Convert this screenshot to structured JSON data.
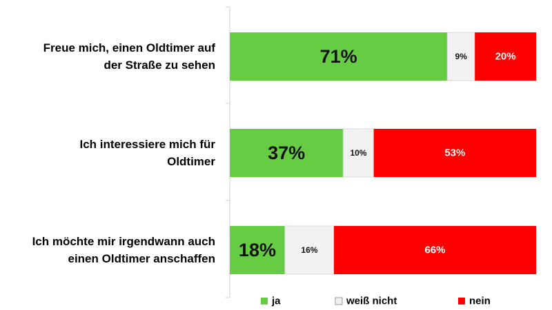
{
  "chart_data": {
    "type": "bar",
    "orientation": "horizontal",
    "stacked": true,
    "title": "",
    "xlabel": "",
    "ylabel": "",
    "xlim": [
      0,
      100
    ],
    "categories": [
      [
        "Freue mich, einen Oldtimer auf",
        "der Straße zu sehen"
      ],
      [
        "Ich interessiere mich für",
        "Oldtimer"
      ],
      [
        "Ich möchte mir irgendwann auch",
        "einen Oldtimer anschaffen"
      ]
    ],
    "series": [
      {
        "name": "ja",
        "color": "#66cc44",
        "values": [
          71,
          37,
          18
        ],
        "labels": [
          "71%",
          "37%",
          "18%"
        ]
      },
      {
        "name": "weiß nicht",
        "color": "#f2f2f2",
        "values": [
          9,
          10,
          16
        ],
        "labels": [
          "9%",
          "10%",
          "16%"
        ]
      },
      {
        "name": "nein",
        "color": "#ff0000",
        "values": [
          20,
          53,
          66
        ],
        "labels": [
          "20%",
          "53%",
          "66%"
        ]
      }
    ],
    "legend_position": "bottom"
  }
}
